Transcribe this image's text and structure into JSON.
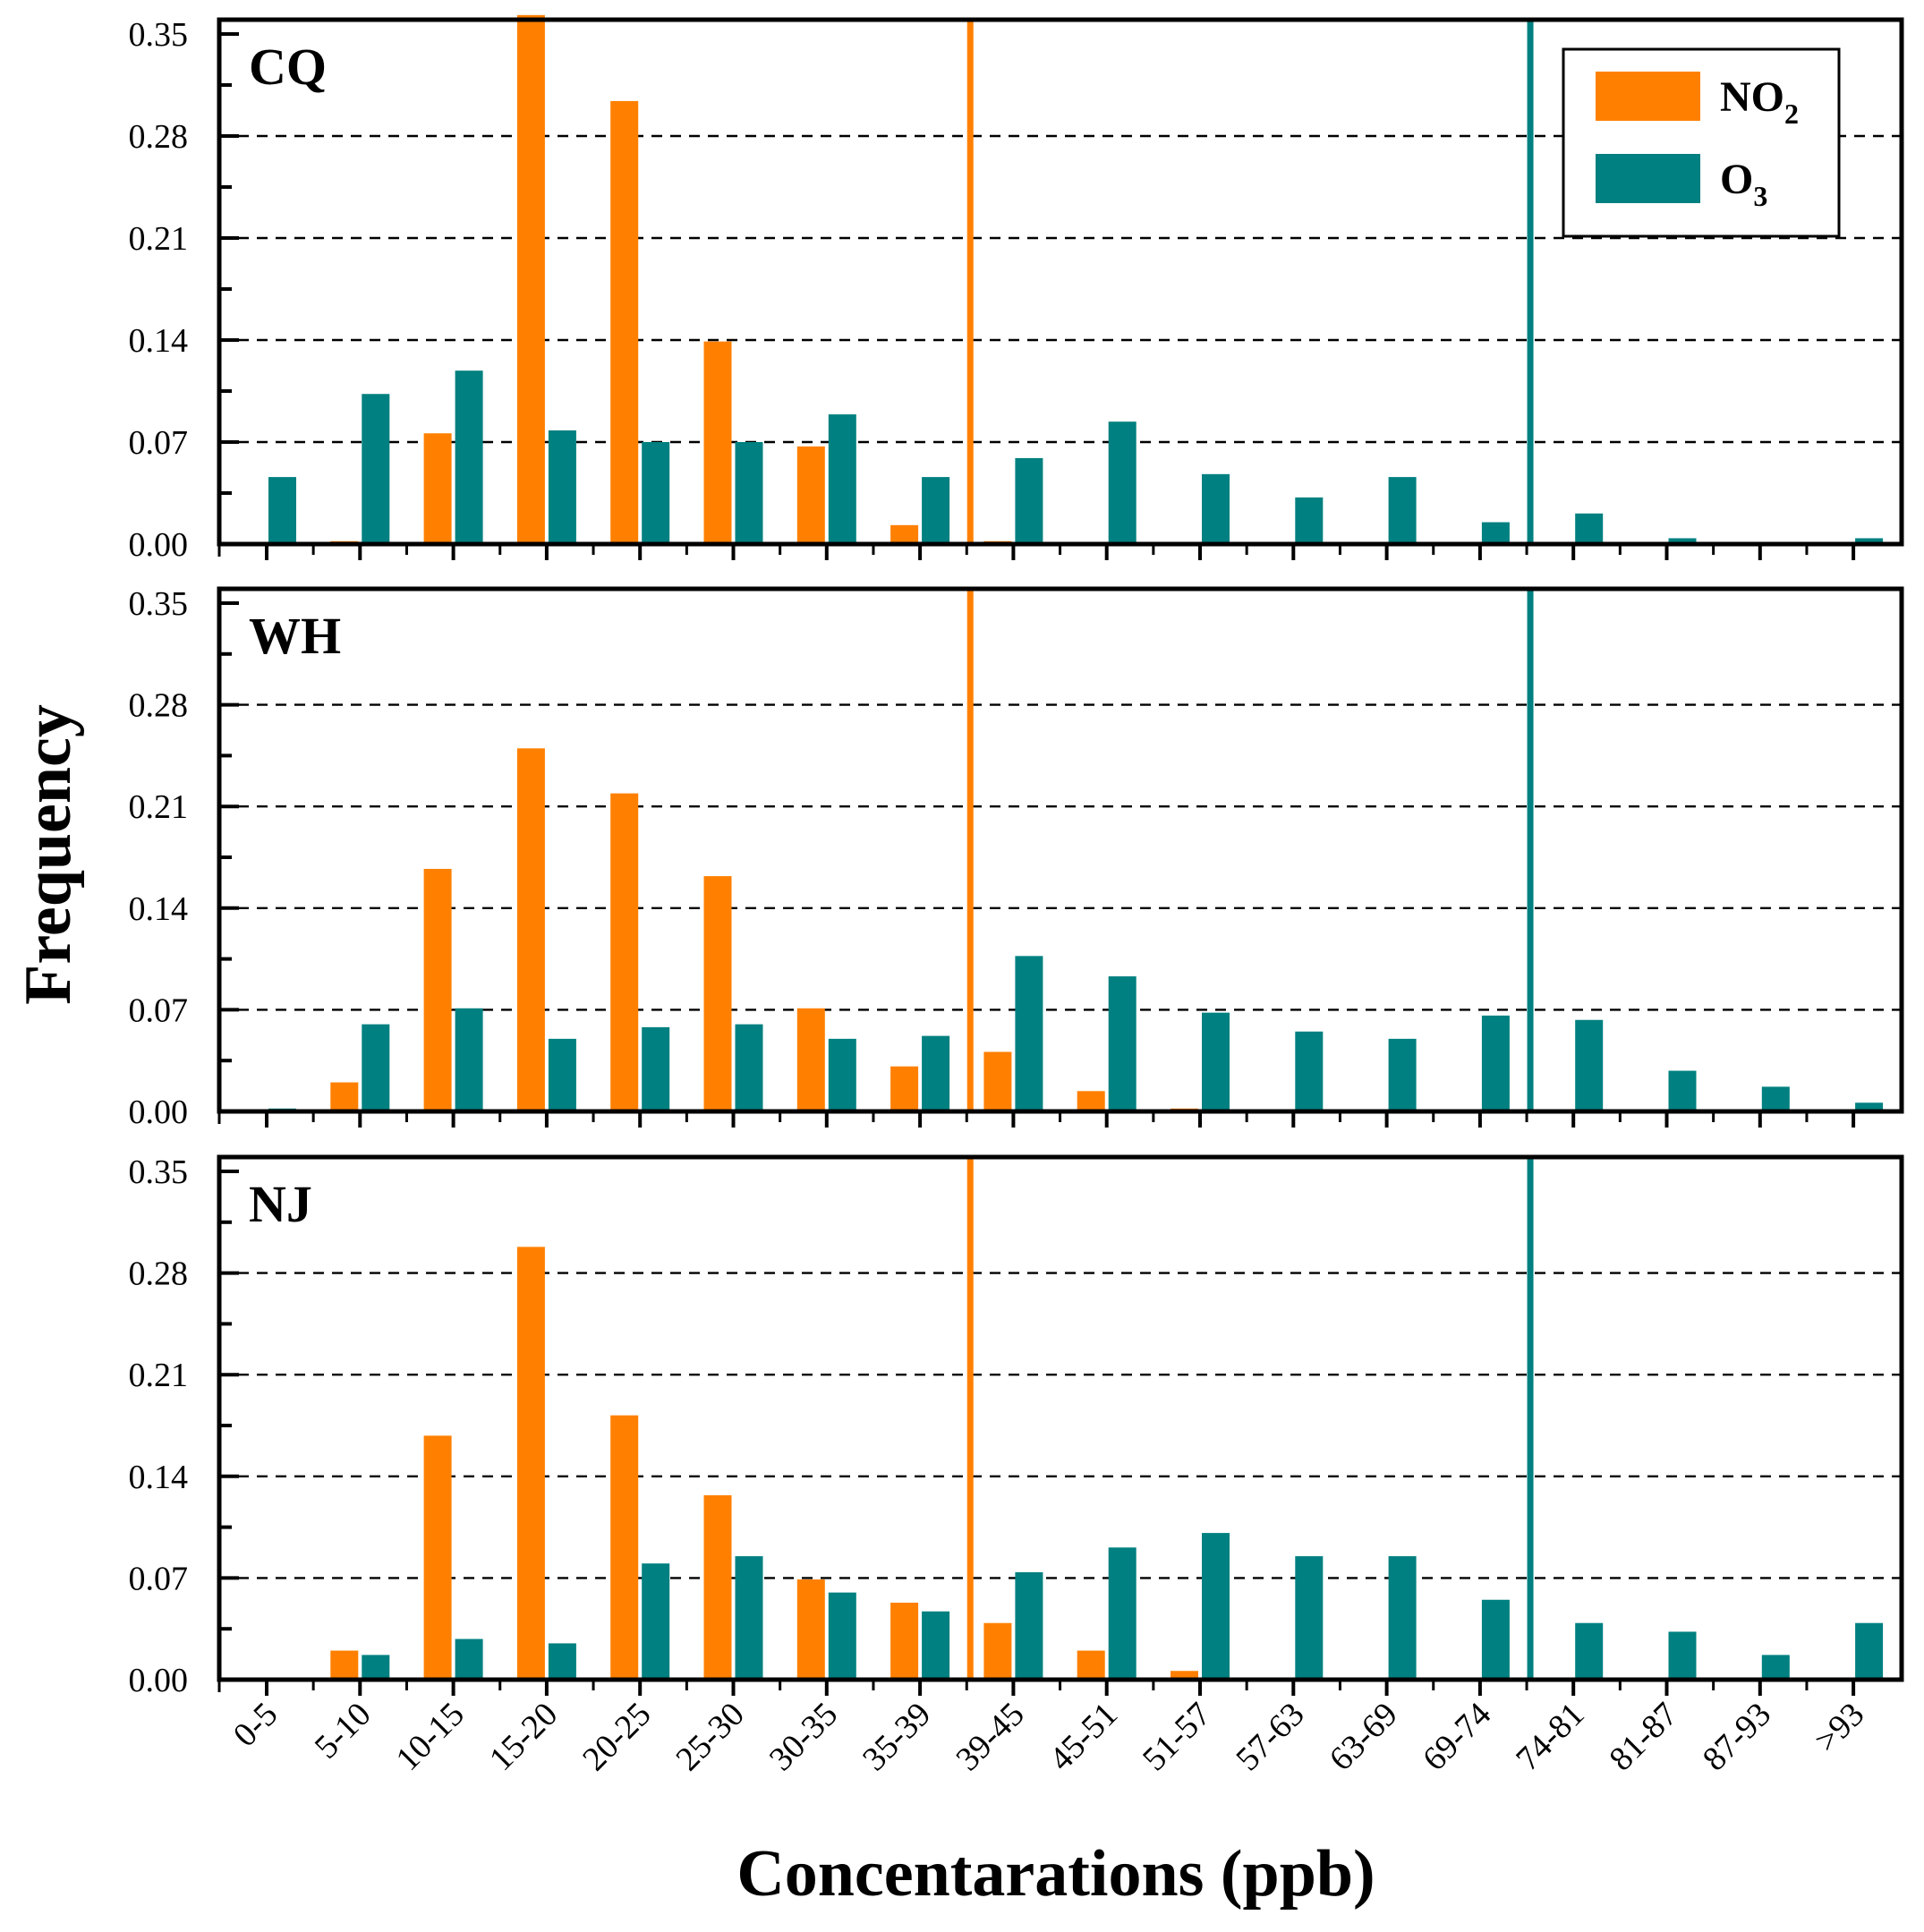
{
  "chart_data": {
    "type": "bar",
    "xlabel": "Concentarations (ppb)",
    "ylabel": "Frequency",
    "ylim": [
      0,
      0.35
    ],
    "yticks": [
      "0.00",
      "0.07",
      "0.14",
      "0.21",
      "0.28",
      "0.35"
    ],
    "categories": [
      "0-5",
      "5-10",
      "10-15",
      "15-20",
      "20-25",
      "25-30",
      "30-35",
      "35-39",
      "39-45",
      "45-51",
      "51-57",
      "57-63",
      "63-69",
      "69-74",
      "74-81",
      "81-87",
      "87-93",
      ">93"
    ],
    "colors": {
      "NO2": "#ff8000",
      "O3": "#008080",
      "grid": "#000000"
    },
    "legend": {
      "position": "top-right",
      "entries": [
        {
          "base": "NO",
          "sub": "2",
          "series": "NO2"
        },
        {
          "base": "O",
          "sub": "3",
          "series": "O3"
        }
      ]
    },
    "grid": "dashed horizontal at 0.07, 0.14, 0.21, 0.28",
    "reference_lines": [
      {
        "series": "NO2",
        "between": [
          "35-39",
          "39-45"
        ]
      },
      {
        "series": "O3",
        "between": [
          "69-74",
          "74-81"
        ]
      }
    ],
    "panels": [
      {
        "label": "CQ",
        "series": [
          {
            "name": "NO2",
            "values": [
              0,
              0.002,
              0.076,
              0.363,
              0.304,
              0.139,
              0.067,
              0.013,
              0.002,
              0,
              0,
              0,
              0,
              0,
              0,
              0,
              0,
              0
            ]
          },
          {
            "name": "O3",
            "values": [
              0.046,
              0.103,
              0.119,
              0.078,
              0.07,
              0.07,
              0.089,
              0.046,
              0.059,
              0.084,
              0.048,
              0.032,
              0.046,
              0.015,
              0.021,
              0.004,
              0,
              0.004
            ]
          }
        ]
      },
      {
        "label": "WH",
        "series": [
          {
            "name": "NO2",
            "values": [
              0,
              0.02,
              0.167,
              0.25,
              0.219,
              0.162,
              0.071,
              0.031,
              0.041,
              0.014,
              0.002,
              0,
              0,
              0,
              0,
              0,
              0,
              0
            ]
          },
          {
            "name": "O3",
            "values": [
              0.002,
              0.06,
              0.071,
              0.05,
              0.058,
              0.06,
              0.05,
              0.052,
              0.107,
              0.093,
              0.068,
              0.055,
              0.05,
              0.066,
              0.063,
              0.028,
              0.017,
              0.006
            ]
          }
        ]
      },
      {
        "label": "NJ",
        "series": [
          {
            "name": "NO2",
            "values": [
              0,
              0.02,
              0.168,
              0.298,
              0.182,
              0.127,
              0.069,
              0.053,
              0.039,
              0.02,
              0.006,
              0,
              0,
              0,
              0,
              0,
              0,
              0
            ]
          },
          {
            "name": "O3",
            "values": [
              0,
              0.017,
              0.028,
              0.025,
              0.08,
              0.085,
              0.06,
              0.047,
              0.074,
              0.091,
              0.101,
              0.085,
              0.085,
              0.055,
              0.039,
              0.033,
              0.017,
              0.039
            ]
          }
        ]
      }
    ]
  }
}
